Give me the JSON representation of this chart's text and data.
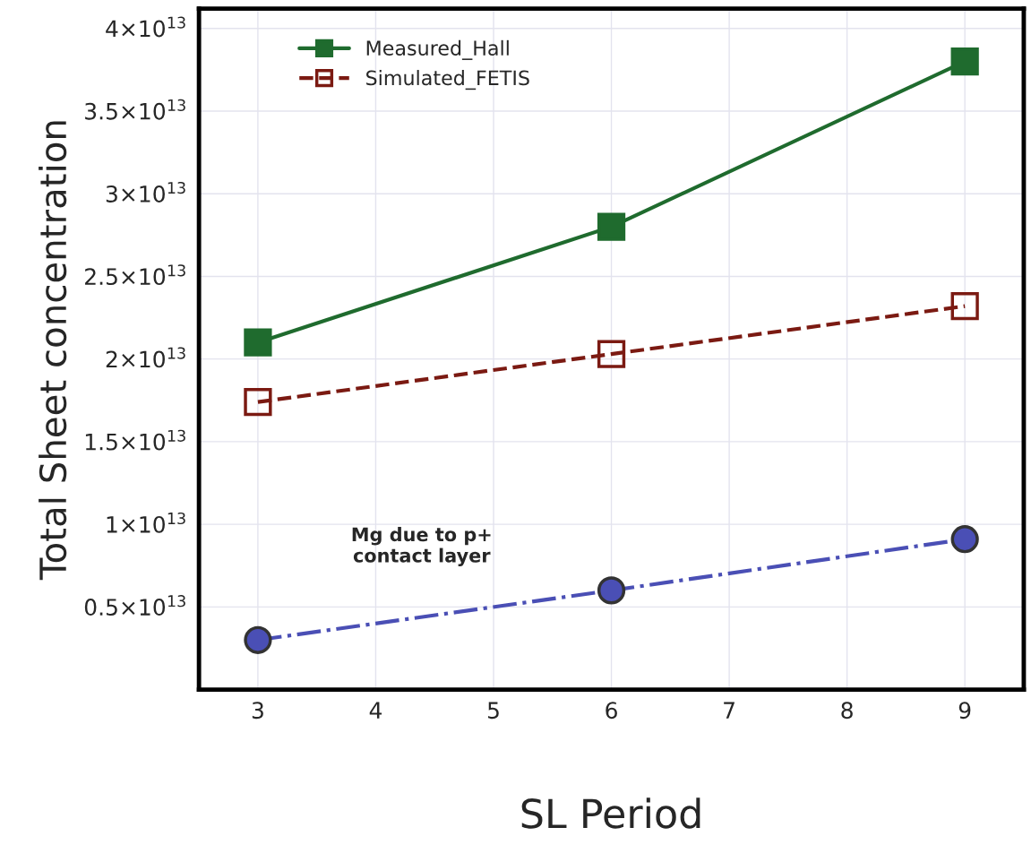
{
  "chart_data": {
    "type": "line",
    "xlabel": "SL Period",
    "ylabel": "Total Sheet concentration",
    "x": [
      3,
      6,
      9
    ],
    "series": [
      {
        "name": "Measured_Hall",
        "color": "#1f6b2e",
        "values": [
          21000000000000.0,
          28000000000000.0,
          38000000000000.0
        ],
        "marker": "square",
        "line_style": "solid"
      },
      {
        "name": "Simulated_FETIS",
        "color": "#7b1a12",
        "values": [
          17400000000000.0,
          20300000000000.0,
          23200000000000.0
        ],
        "marker": "square",
        "line_style": "dashed"
      },
      {
        "color": "#4a4fb5",
        "values": [
          3000000000000.0,
          6000000000000.0,
          9100000000000.0
        ],
        "marker": "circle",
        "line_style": "dashdot"
      }
    ],
    "xlim": [
      2.5,
      9.5
    ],
    "xticks": [
      3,
      4,
      5,
      6,
      7,
      8,
      9
    ],
    "ylim": [
      0,
      41200000000000.0
    ],
    "yticks": [
      {
        "value": 5000000000000.0,
        "label": "0.5×10$^{13}$"
      },
      {
        "value": 10000000000000.0,
        "label": "1×10$^{13}$"
      },
      {
        "value": 15000000000000.0,
        "label": "1.5×10$^{13}$"
      },
      {
        "value": 20000000000000.0,
        "label": "2×10$^{13}$"
      },
      {
        "value": 25000000000000.0,
        "label": "2.5×10$^{13}$"
      },
      {
        "value": 30000000000000.0,
        "label": "3×10$^{13}$"
      },
      {
        "value": 35000000000000.0,
        "label": "3.5×10$^{13}$"
      },
      {
        "value": 40000000000000.0,
        "label": "4×10$^{13}$"
      }
    ],
    "annotations": [
      "Mg due to p+\ncontact layer"
    ],
    "grid": true,
    "legend": "top left"
  }
}
